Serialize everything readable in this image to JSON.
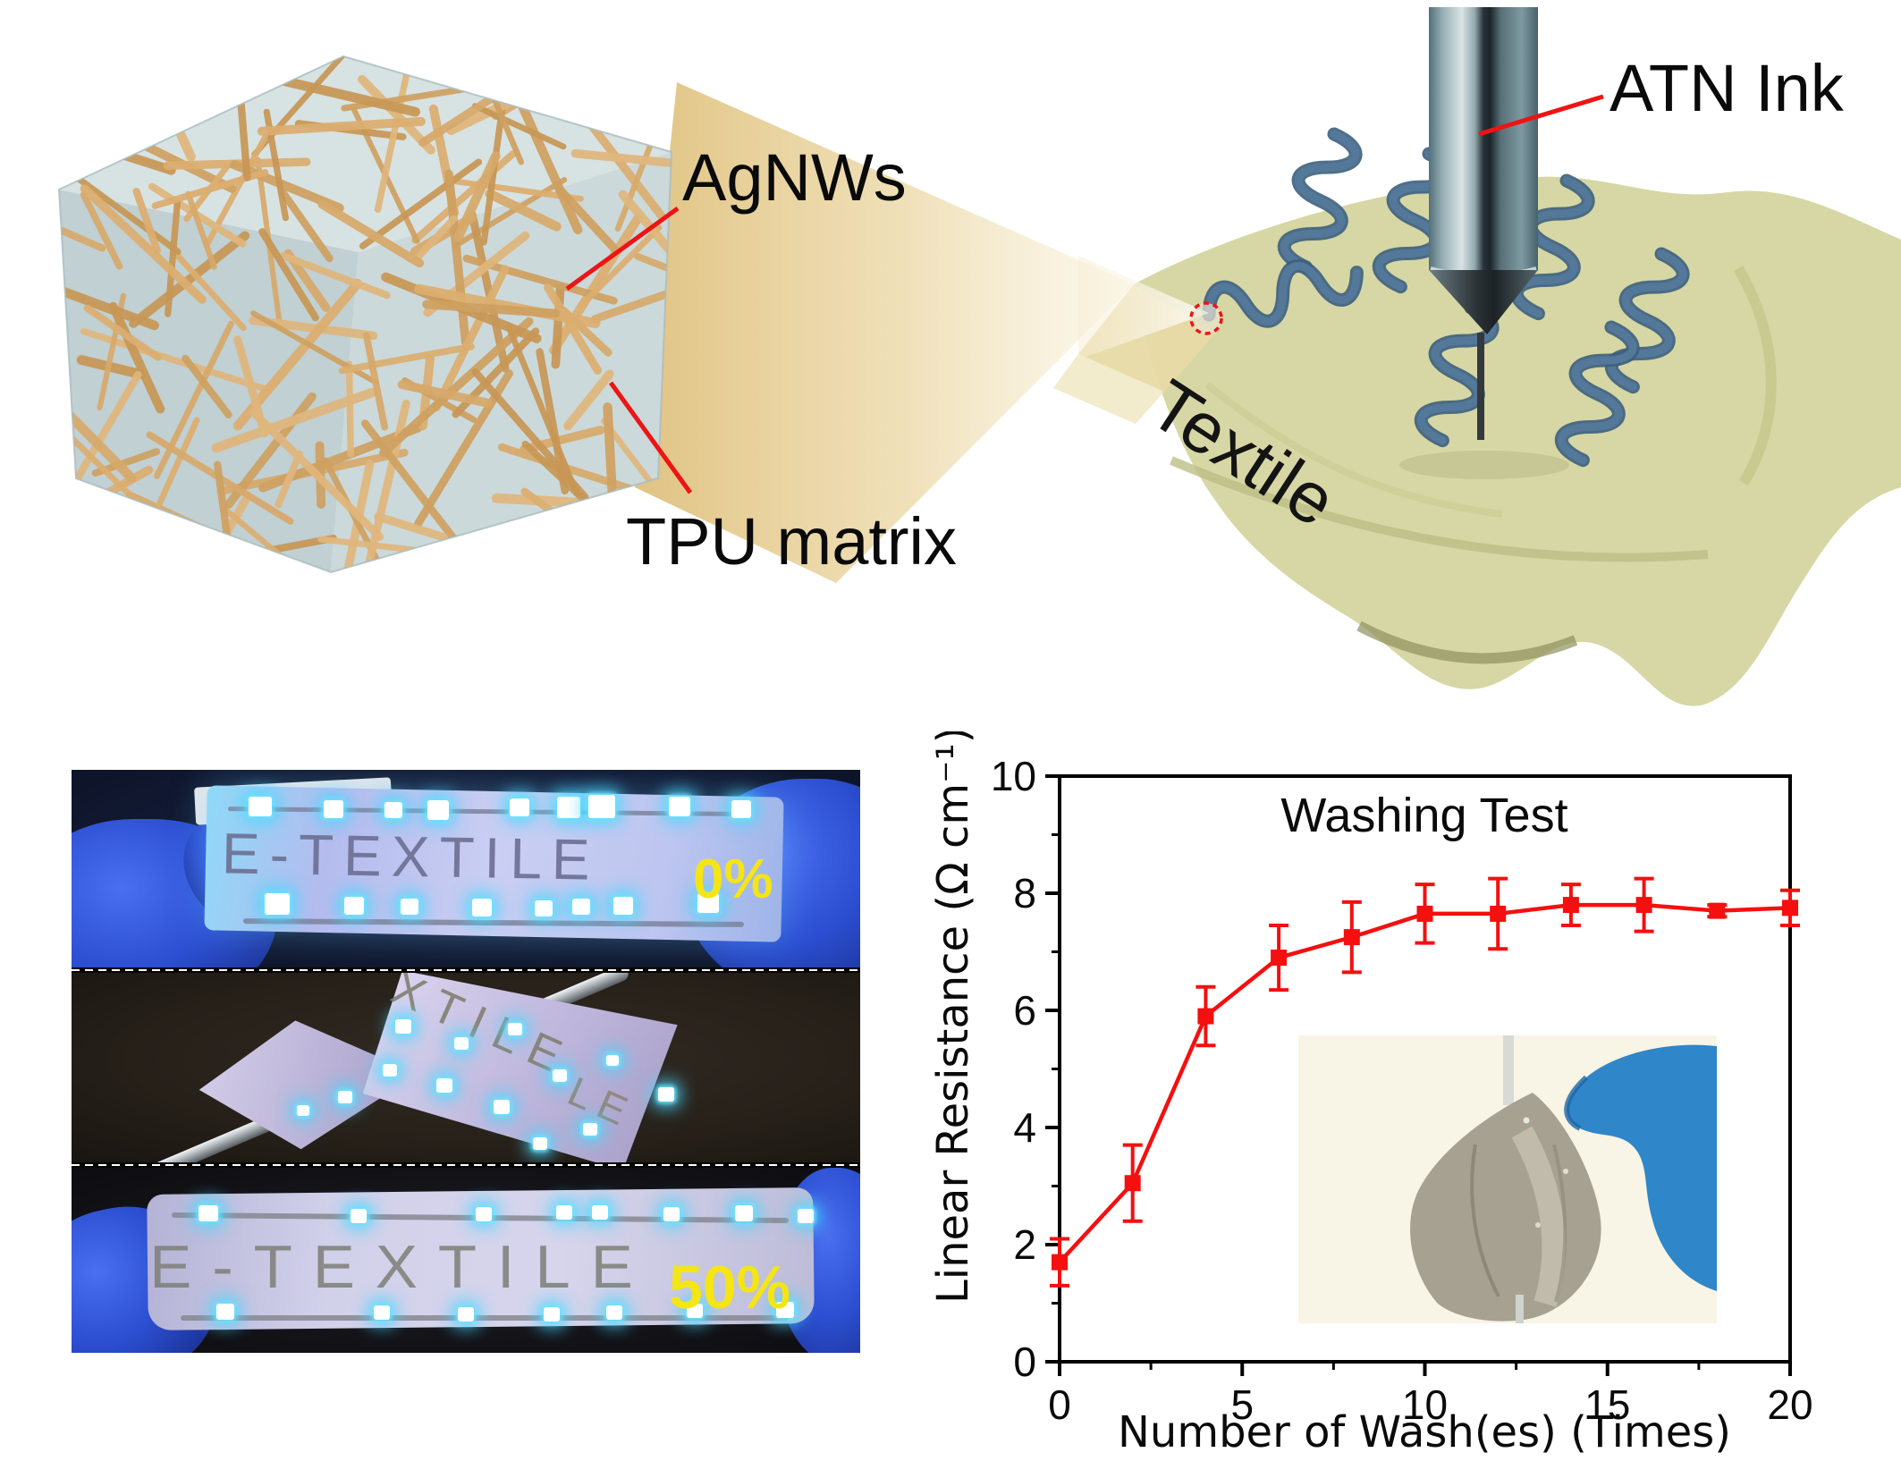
{
  "illustration": {
    "agnws_label": "AgNWs",
    "tpu_label": "TPU matrix",
    "atn_label": "ATN Ink",
    "textile_label": "Textile"
  },
  "photos": {
    "strain_relaxed": "0%",
    "strain_stretched": "50%",
    "etched_text": "E-TEXTILE",
    "etched_text_partial_upper": "XTILE",
    "etched_text_partial_lower": "LE"
  },
  "chart_data": {
    "type": "line",
    "title": "Washing Test",
    "xlabel": "Number of Wash(es) (Times)",
    "ylabel": "Linear Resistance (Ω cm⁻¹)",
    "xlim": [
      0,
      20
    ],
    "ylim": [
      0,
      10
    ],
    "x_major_ticks": [
      0,
      5,
      10,
      15,
      20
    ],
    "y_major_ticks": [
      0,
      2,
      4,
      6,
      8,
      10
    ],
    "x_minor_step": 2.5,
    "y_minor_step": 1,
    "grid": false,
    "legend": "none",
    "series": [
      {
        "name": "linear-resistance",
        "marker": "square",
        "color": "#f50f0f",
        "x": [
          0,
          2,
          4,
          6,
          8,
          10,
          12,
          14,
          16,
          18,
          20
        ],
        "y": [
          1.7,
          3.05,
          5.9,
          6.9,
          7.25,
          7.65,
          7.65,
          7.8,
          7.8,
          7.7,
          7.75
        ],
        "yerr": [
          0.4,
          0.65,
          0.5,
          0.55,
          0.6,
          0.5,
          0.6,
          0.35,
          0.45,
          0.1,
          0.3
        ]
      }
    ]
  },
  "colors": {
    "annotation_red": "#ee1414",
    "series_red": "#f50f0f",
    "strain_yellow": "#f5e515",
    "glove_blue": "#2c4fd2",
    "inset_glove_blue": "#2f86c8",
    "cube_face": "#cbd9db",
    "nanowire_tan": "#d7a96b",
    "textile_olive": "#d6d7a4",
    "ink_squiggle_blue": "#54789a",
    "nozzle_gray": "#7e99a1",
    "led_cyan": "#49d6ff"
  }
}
